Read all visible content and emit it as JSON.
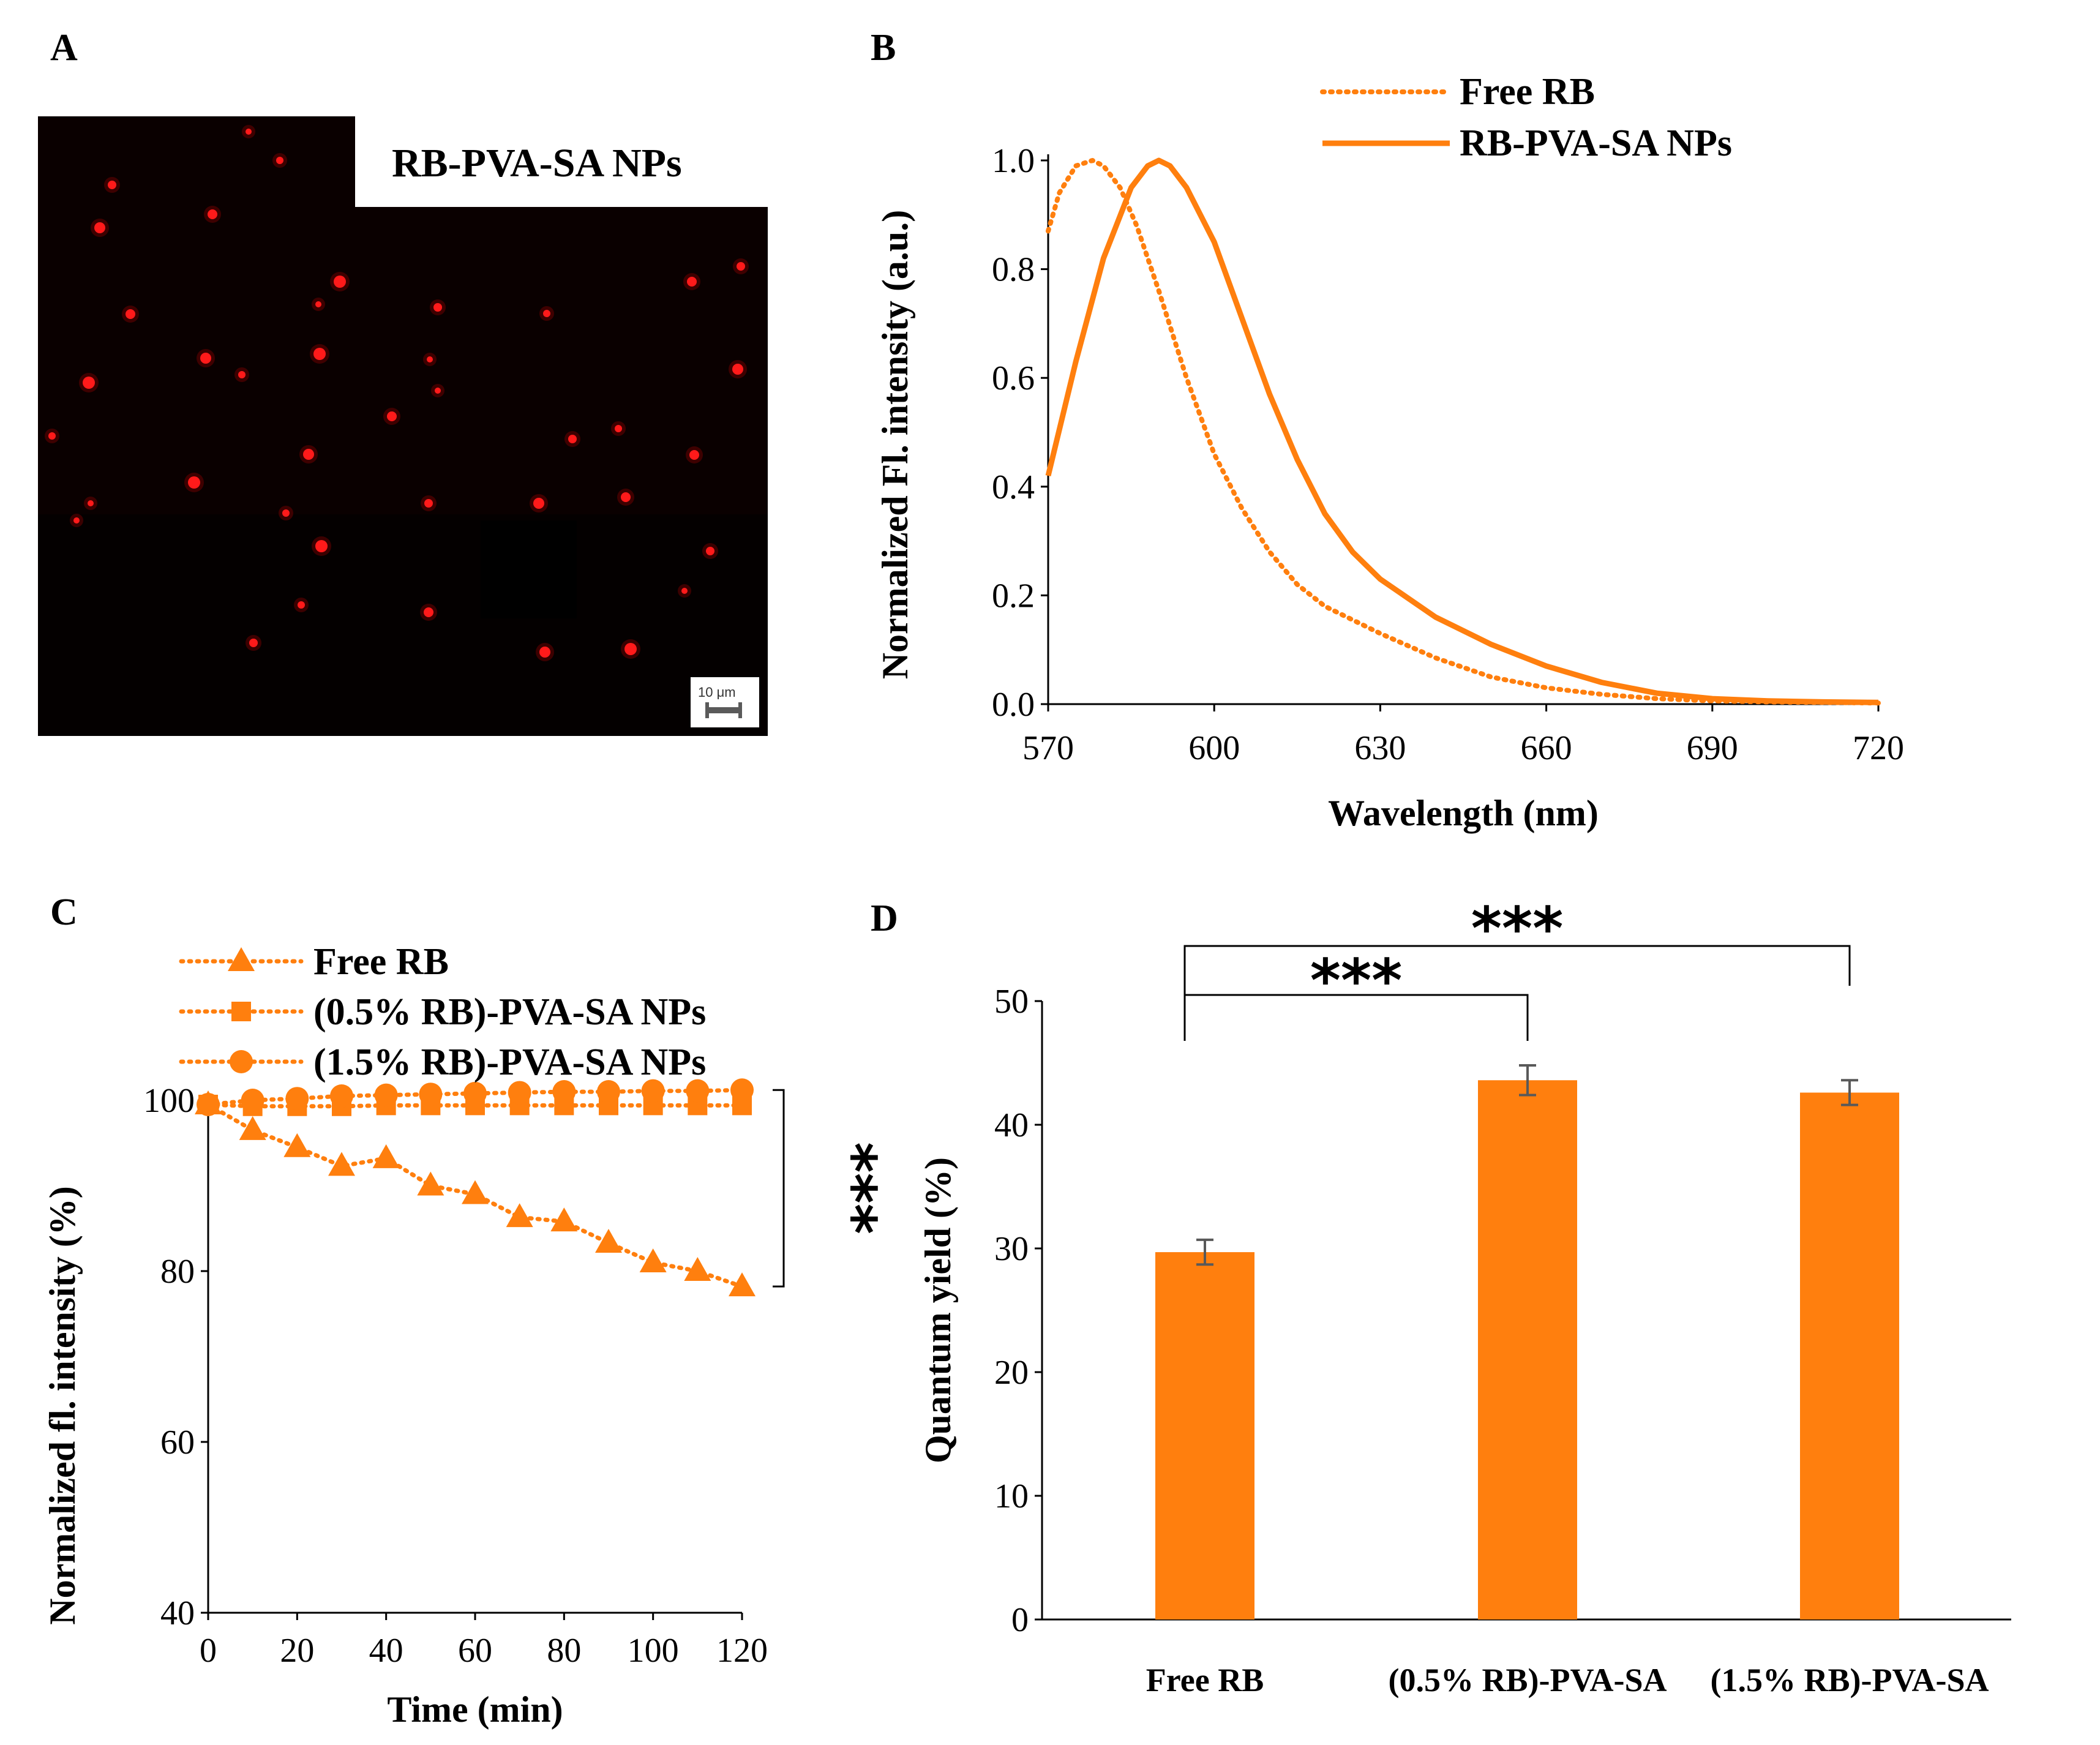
{
  "panels": {
    "A": {
      "letter": "A",
      "image_label": "RB-PVA-SA NPs",
      "scale_bar": "10 μm"
    },
    "B": {
      "letter": "B"
    },
    "C": {
      "letter": "C"
    },
    "D": {
      "letter": "D"
    }
  },
  "colors": {
    "accent": "#FF7F0E",
    "error": "#595959"
  },
  "chart_data": [
    {
      "id": "B",
      "type": "line",
      "xlabel": "Wavelength (nm)",
      "ylabel": "Normalized Fl. intensity (a.u.)",
      "xlim": [
        570,
        720
      ],
      "ylim": [
        0,
        1.0
      ],
      "xticks": [
        570,
        600,
        630,
        660,
        690,
        720
      ],
      "yticks": [
        "0.0",
        "0.2",
        "0.4",
        "0.6",
        "0.8",
        "1.0"
      ],
      "series": [
        {
          "name": "Free RB",
          "style": "dotted",
          "x": [
            570,
            572,
            575,
            578,
            580,
            583,
            586,
            590,
            595,
            600,
            605,
            610,
            615,
            620,
            630,
            640,
            650,
            660,
            670,
            680,
            690,
            700,
            710,
            720
          ],
          "y": [
            0.87,
            0.94,
            0.99,
            1.0,
            0.99,
            0.95,
            0.88,
            0.76,
            0.6,
            0.46,
            0.36,
            0.28,
            0.22,
            0.18,
            0.13,
            0.085,
            0.05,
            0.03,
            0.018,
            0.01,
            0.006,
            0.004,
            0.003,
            0.002
          ]
        },
        {
          "name": "RB-PVA-SA NPs",
          "style": "solid",
          "x": [
            570,
            575,
            580,
            585,
            588,
            590,
            592,
            595,
            600,
            605,
            610,
            615,
            620,
            625,
            630,
            640,
            650,
            660,
            670,
            680,
            690,
            700,
            710,
            720
          ],
          "y": [
            0.42,
            0.63,
            0.82,
            0.95,
            0.99,
            1.0,
            0.99,
            0.95,
            0.85,
            0.71,
            0.57,
            0.45,
            0.35,
            0.28,
            0.23,
            0.16,
            0.11,
            0.07,
            0.04,
            0.02,
            0.01,
            0.006,
            0.004,
            0.003
          ]
        }
      ]
    },
    {
      "id": "C",
      "type": "line",
      "xlabel": "Time (min)",
      "ylabel": "Normalized fl. intensity (%)",
      "xlim": [
        0,
        120
      ],
      "ylim": [
        40,
        100
      ],
      "xticks": [
        0,
        20,
        40,
        60,
        80,
        100,
        120
      ],
      "yticks": [
        40,
        60,
        80,
        100
      ],
      "x": [
        0,
        10,
        20,
        30,
        40,
        50,
        60,
        70,
        80,
        90,
        100,
        110,
        120
      ],
      "significance": "***",
      "series": [
        {
          "name": "Free RB",
          "marker": "triangle",
          "values": [
            99.5,
            96.5,
            94.5,
            92.3,
            93.2,
            90.0,
            89.0,
            86.3,
            85.8,
            83.3,
            81.0,
            80.0,
            78.2
          ]
        },
        {
          "name": "(0.5% RB)-PVA-SA NPs",
          "marker": "square",
          "values": [
            99.5,
            99.3,
            99.3,
            99.3,
            99.4,
            99.4,
            99.4,
            99.4,
            99.4,
            99.4,
            99.4,
            99.4,
            99.4
          ]
        },
        {
          "name": "(1.5% RB)-PVA-SA NPs",
          "marker": "circle",
          "values": [
            99.5,
            100.0,
            100.2,
            100.5,
            100.6,
            100.7,
            100.8,
            100.9,
            101.0,
            101.0,
            101.1,
            101.1,
            101.2
          ]
        }
      ]
    },
    {
      "id": "D",
      "type": "bar",
      "ylabel": "Quantum yield (%)",
      "ylim": [
        0,
        50
      ],
      "yticks": [
        0,
        10,
        20,
        30,
        40,
        50
      ],
      "categories": [
        "Free RB",
        "(0.5% RB)-PVA-SA",
        "(1.5% RB)-PVA-SA"
      ],
      "values": [
        29.7,
        43.6,
        42.6
      ],
      "errors": [
        1.0,
        1.2,
        1.0
      ],
      "significance": [
        "***",
        "***"
      ]
    }
  ]
}
